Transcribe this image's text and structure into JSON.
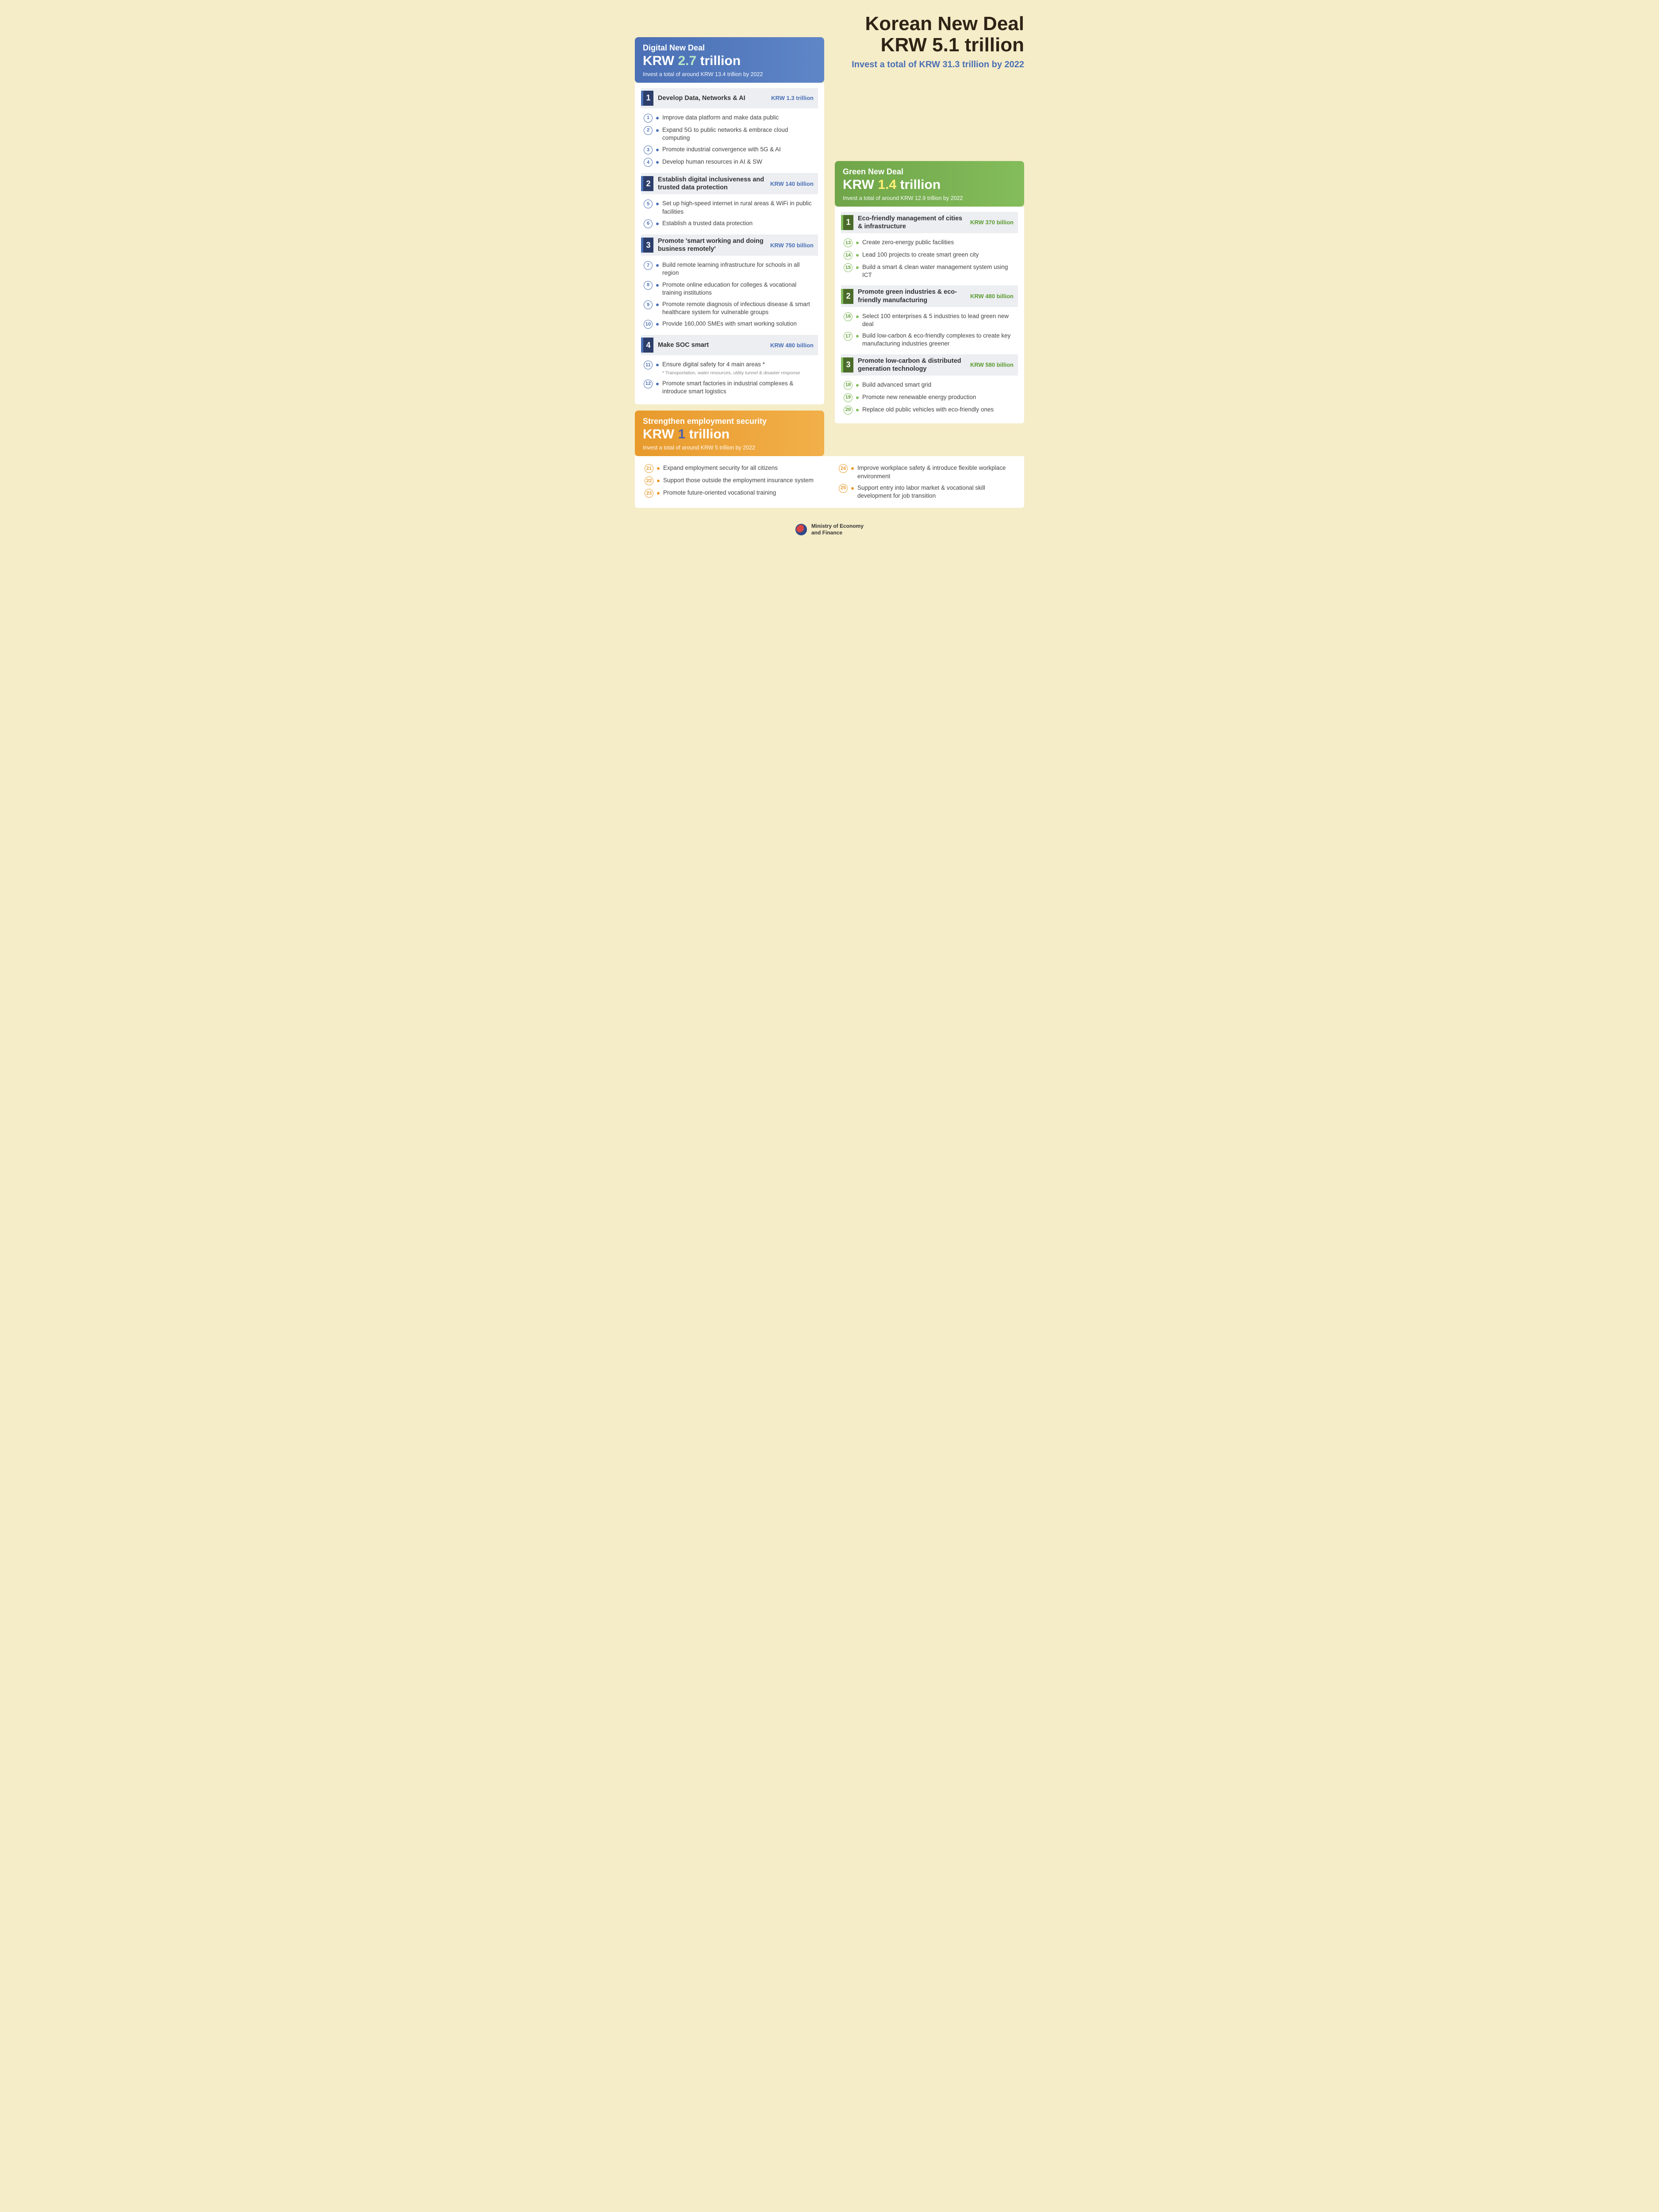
{
  "main": {
    "title_line1": "Korean New Deal",
    "title_line2": "KRW 5.1 trillion",
    "subtitle": "Invest a total of KRW 31.3 trillion by 2022"
  },
  "colors": {
    "background": "#f5ecc8",
    "blue_primary": "#4a6fb5",
    "blue_dark": "#2d3e6b",
    "green_primary": "#84bd5c",
    "green_dark": "#4a6b2a",
    "green_text": "#5a9a2e",
    "orange_primary": "#e89a2c",
    "section_bg": "#eceef2"
  },
  "digital": {
    "name": "Digital New Deal",
    "amount_prefix": "KRW ",
    "amount_hl": "2.7",
    "amount_suffix": " trillion",
    "invest": "Invest a total of around KRW 13.4 trillion by 2022",
    "sections": [
      {
        "num": "1",
        "title": "Develop Data, Networks & AI",
        "amount": "KRW 1.3 trillion",
        "items": [
          {
            "n": "1",
            "text": "Improve data platform and make data public"
          },
          {
            "n": "2",
            "text": "Expand 5G to public networks & embrace cloud computing"
          },
          {
            "n": "3",
            "text": "Promote industrial convergence with 5G & AI"
          },
          {
            "n": "4",
            "text": "Develop human resources in AI & SW"
          }
        ]
      },
      {
        "num": "2",
        "title": "Establish digital inclusiveness and trusted data protection",
        "amount": "KRW 140 billion",
        "items": [
          {
            "n": "5",
            "text": "Set up high-speed internet in rural areas & WiFi in public facilities"
          },
          {
            "n": "6",
            "text": "Establish a trusted data protection"
          }
        ]
      },
      {
        "num": "3",
        "title": "Promote 'smart working and doing business remotely'",
        "amount": "KRW 750 billion",
        "items": [
          {
            "n": "7",
            "text": "Build remote learning infrastructure for schools in all region"
          },
          {
            "n": "8",
            "text": "Promote online education for colleges & vocational training institutions"
          },
          {
            "n": "9",
            "text": "Promote remote diagnosis of infectious disease & smart healthcare system for vulnerable groups"
          },
          {
            "n": "10",
            "text": "Provide 160,000 SMEs with smart working solution"
          }
        ]
      },
      {
        "num": "4",
        "title": "Make SOC smart",
        "amount": "KRW 480 billion",
        "items": [
          {
            "n": "11",
            "text": "Ensure digital safety for 4 main areas *",
            "note": "* Transportation, water resources, utility tunnel & disaster response"
          },
          {
            "n": "12",
            "text": "Promote smart factories in industrial complexes & introduce smart logistics"
          }
        ]
      }
    ]
  },
  "green": {
    "name": "Green New Deal",
    "amount_prefix": "KRW ",
    "amount_hl": "1.4",
    "amount_suffix": " trillion",
    "invest": "Invest a total of around KRW 12.9 trillion by 2022",
    "sections": [
      {
        "num": "1",
        "title": "Eco-friendly management of cities & infrastructure",
        "amount": "KRW 370 billion",
        "items": [
          {
            "n": "13",
            "text": "Create zero-energy public facilities"
          },
          {
            "n": "14",
            "text": "Lead 100 projects to create smart green city"
          },
          {
            "n": "15",
            "text": "Build a smart & clean water management system using ICT"
          }
        ]
      },
      {
        "num": "2",
        "title": "Promote green industries & eco-friendly manufacturing",
        "amount": "KRW 480 billion",
        "items": [
          {
            "n": "16",
            "text": "Select 100 enterprises & 5 industries to lead green new deal"
          },
          {
            "n": "17",
            "text": "Build low-carbon & eco-friendly complexes to create key manufacturing industries greener"
          }
        ]
      },
      {
        "num": "3",
        "title": "Promote low-carbon & distributed generation technology",
        "amount": "KRW 580 billion",
        "items": [
          {
            "n": "18",
            "text": "Build advanced smart grid"
          },
          {
            "n": "19",
            "text": "Promote new renewable energy production"
          },
          {
            "n": "20",
            "text": "Replace old public vehicles with eco-friendly ones"
          }
        ]
      }
    ]
  },
  "employment": {
    "name": "Strengthen employment security",
    "amount_prefix": "KRW ",
    "amount_hl": "1",
    "amount_suffix": " trillion",
    "invest": "Invest a total of around KRW 5 trillion by 2022",
    "items_left": [
      {
        "n": "21",
        "text": "Expand employment security for all citizens"
      },
      {
        "n": "22",
        "text": "Support those outside the employment insurance system"
      },
      {
        "n": "23",
        "text": "Promote future-oriented vocational training"
      }
    ],
    "items_right": [
      {
        "n": "24",
        "text": "Improve workplace safety & introduce flexible workplace environment"
      },
      {
        "n": "25",
        "text": "Support entry into labor market & vocational skill development for job transition"
      }
    ]
  },
  "footer": {
    "text": "Ministry of Economy\nand Finance"
  }
}
